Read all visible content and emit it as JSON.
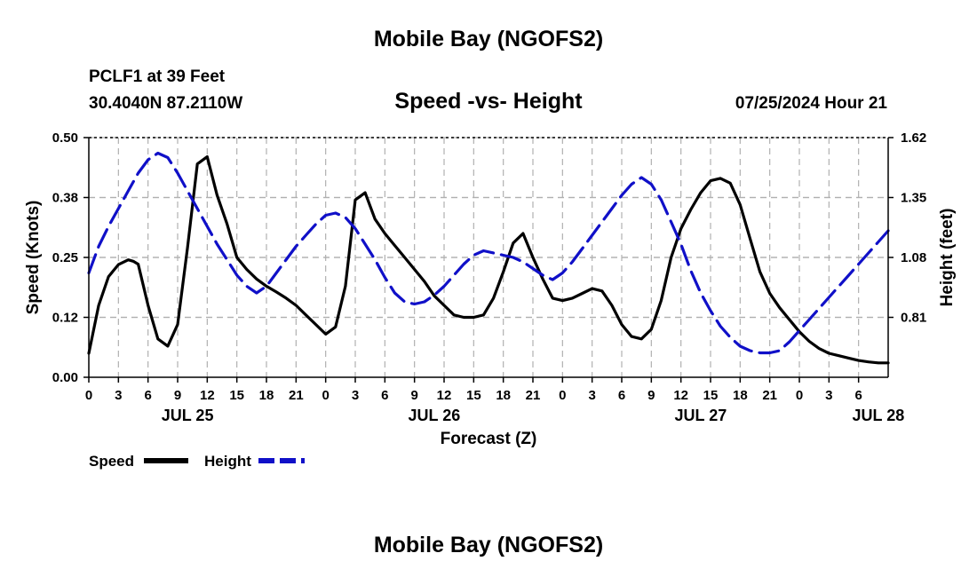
{
  "header": {
    "title": "Mobile Bay (NGOFS2)",
    "station": "PCLF1 at 39 Feet",
    "coordinates": "30.4040N  87.2110W",
    "chart_title": "Speed -vs- Height",
    "forecast_time": "07/25/2024 Hour 21"
  },
  "footer": {
    "title": "Mobile Bay (NGOFS2)"
  },
  "colors": {
    "speed": "#000000",
    "height": "#1010c8",
    "grid": "#b0b0b0"
  },
  "chart_data": {
    "type": "line",
    "title": "Speed -vs- Height",
    "xlabel": "Forecast (Z)",
    "ylabel_left": "Speed (Knots)",
    "ylabel_right": "Height (feet)",
    "x_range_hours": [
      0,
      81
    ],
    "x_tick_step_hours": 3,
    "x_tick_labels": [
      "0",
      "3",
      "6",
      "9",
      "12",
      "15",
      "18",
      "21",
      "0",
      "3",
      "6",
      "9",
      "12",
      "15",
      "18",
      "21",
      "0",
      "3",
      "6",
      "9",
      "12",
      "15",
      "18",
      "21",
      "0",
      "3",
      "6"
    ],
    "date_labels": [
      {
        "label": "JUL 25",
        "hour": 10
      },
      {
        "label": "JUL 26",
        "hour": 35
      },
      {
        "label": "JUL 27",
        "hour": 62
      },
      {
        "label": "JUL 28",
        "hour": 80
      }
    ],
    "ylim_left": [
      0,
      0.5
    ],
    "yticks_left": [
      "0.00",
      "0.12",
      "0.25",
      "0.38",
      "0.50"
    ],
    "ylim_right": [
      0.54,
      1.62
    ],
    "yticks_right": [
      "0.81",
      "1.08",
      "1.35",
      "1.62"
    ],
    "grid": true,
    "legend_position": "bottom-left",
    "series": [
      {
        "name": "Speed",
        "axis": "left",
        "style": "solid",
        "x": [
          0,
          1,
          2,
          3,
          4,
          4.5,
          5,
          6,
          7,
          8,
          9,
          10,
          11,
          12,
          13,
          14,
          15,
          16,
          17,
          18,
          19,
          20,
          21,
          22,
          23,
          24,
          25,
          26,
          27,
          28,
          29,
          30,
          31,
          32,
          33,
          34,
          35,
          36,
          37,
          38,
          39,
          40,
          41,
          42,
          43,
          44,
          45,
          46,
          47,
          48,
          49,
          50,
          51,
          52,
          53,
          54,
          55,
          56,
          57,
          58,
          59,
          60,
          61,
          62,
          63,
          64,
          65,
          66,
          67,
          68,
          69,
          70,
          71,
          72,
          73,
          74,
          75,
          76,
          77,
          78,
          79,
          80,
          81
        ],
        "values": [
          0.05,
          0.15,
          0.21,
          0.235,
          0.245,
          0.242,
          0.236,
          0.15,
          0.08,
          0.065,
          0.11,
          0.27,
          0.445,
          0.46,
          0.38,
          0.32,
          0.25,
          0.225,
          0.205,
          0.19,
          0.178,
          0.165,
          0.15,
          0.13,
          0.11,
          0.09,
          0.105,
          0.19,
          0.37,
          0.385,
          0.33,
          0.3,
          0.275,
          0.25,
          0.225,
          0.2,
          0.17,
          0.15,
          0.13,
          0.125,
          0.125,
          0.13,
          0.165,
          0.22,
          0.28,
          0.3,
          0.25,
          0.205,
          0.165,
          0.16,
          0.165,
          0.175,
          0.185,
          0.18,
          0.15,
          0.11,
          0.085,
          0.08,
          0.1,
          0.16,
          0.25,
          0.31,
          0.35,
          0.385,
          0.41,
          0.415,
          0.405,
          0.36,
          0.29,
          0.22,
          0.175,
          0.145,
          0.12,
          0.095,
          0.075,
          0.06,
          0.05,
          0.045,
          0.04,
          0.035,
          0.032,
          0.03,
          0.03
        ]
      },
      {
        "name": "Height",
        "axis": "right",
        "style": "dashed",
        "x": [
          0,
          1,
          2,
          3,
          4,
          5,
          6,
          7,
          8,
          9,
          10,
          11,
          12,
          13,
          14,
          15,
          16,
          17,
          18,
          19,
          20,
          21,
          22,
          23,
          24,
          25,
          26,
          27,
          28,
          29,
          30,
          31,
          32,
          33,
          34,
          35,
          36,
          37,
          38,
          39,
          40,
          41,
          42,
          43,
          44,
          45,
          46,
          47,
          48,
          49,
          50,
          51,
          52,
          53,
          54,
          55,
          56,
          57,
          58,
          59,
          60,
          61,
          62,
          63,
          64,
          65,
          66,
          67,
          68,
          69,
          70,
          71,
          72,
          73,
          74,
          75,
          76,
          77,
          78,
          79,
          80,
          81
        ],
        "values": [
          1.01,
          1.13,
          1.22,
          1.3,
          1.38,
          1.46,
          1.52,
          1.55,
          1.53,
          1.46,
          1.38,
          1.3,
          1.22,
          1.14,
          1.07,
          1.0,
          0.95,
          0.92,
          0.95,
          1.01,
          1.07,
          1.13,
          1.18,
          1.23,
          1.27,
          1.28,
          1.26,
          1.21,
          1.14,
          1.07,
          0.99,
          0.92,
          0.88,
          0.87,
          0.88,
          0.91,
          0.95,
          1.0,
          1.05,
          1.09,
          1.11,
          1.1,
          1.09,
          1.08,
          1.06,
          1.03,
          1.0,
          0.98,
          1.01,
          1.06,
          1.12,
          1.18,
          1.24,
          1.3,
          1.36,
          1.41,
          1.44,
          1.41,
          1.34,
          1.24,
          1.14,
          1.02,
          0.92,
          0.84,
          0.77,
          0.72,
          0.68,
          0.66,
          0.65,
          0.65,
          0.66,
          0.7,
          0.75,
          0.8,
          0.85,
          0.9,
          0.95,
          1.0,
          1.05,
          1.1,
          1.15,
          1.2
        ]
      }
    ]
  }
}
